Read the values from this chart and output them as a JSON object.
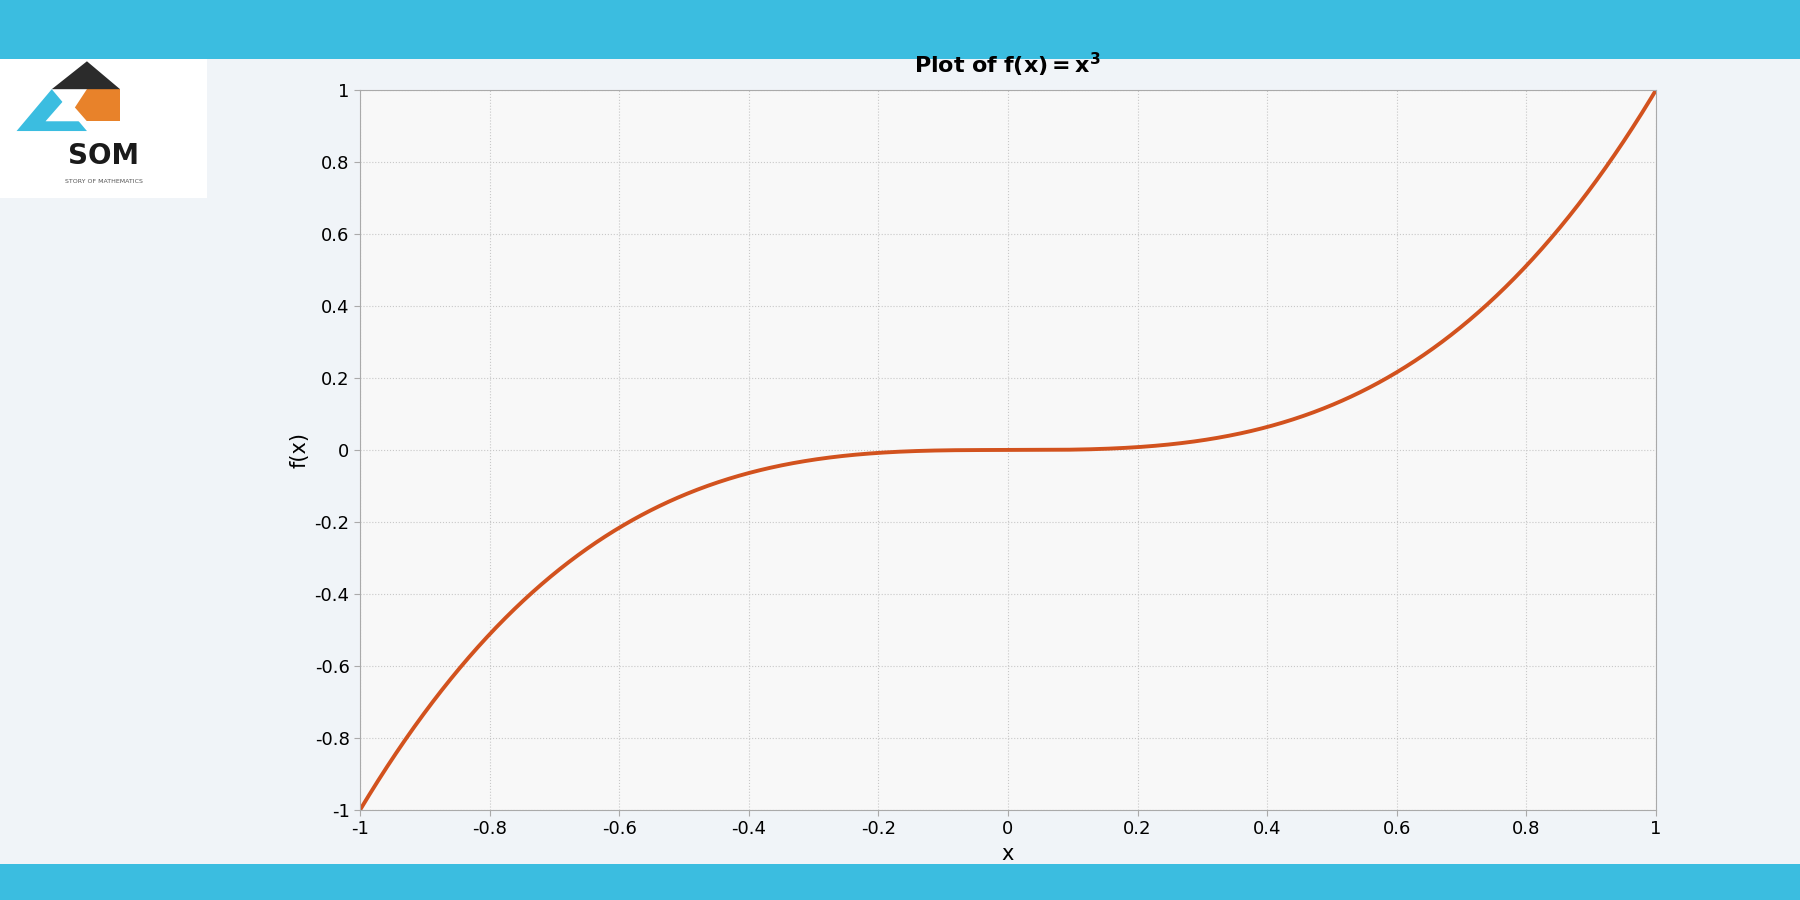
{
  "x_min": -1.0,
  "x_max": 1.0,
  "y_min": -1.0,
  "y_max": 1.0,
  "x_ticks": [
    -1,
    -0.8,
    -0.6,
    -0.4,
    -0.2,
    0,
    0.2,
    0.4,
    0.6,
    0.8,
    1
  ],
  "y_ticks": [
    -1,
    -0.8,
    -0.6,
    -0.4,
    -0.2,
    0,
    0.2,
    0.4,
    0.6,
    0.8,
    1
  ],
  "line_color": "#D2521E",
  "line_width": 2.8,
  "xlabel": "x",
  "ylabel": "f(x)",
  "fig_bg_color": "#F0F4F8",
  "grid_color": "#C8C8C8",
  "axis_bg_color": "#F8F8F8",
  "top_bar_color": "#3BBDE0",
  "bottom_bar_color": "#3BBDE0",
  "spine_color": "#AAAAAA",
  "tick_label_fontsize": 13,
  "axis_label_fontsize": 15,
  "title_fontsize": 16
}
